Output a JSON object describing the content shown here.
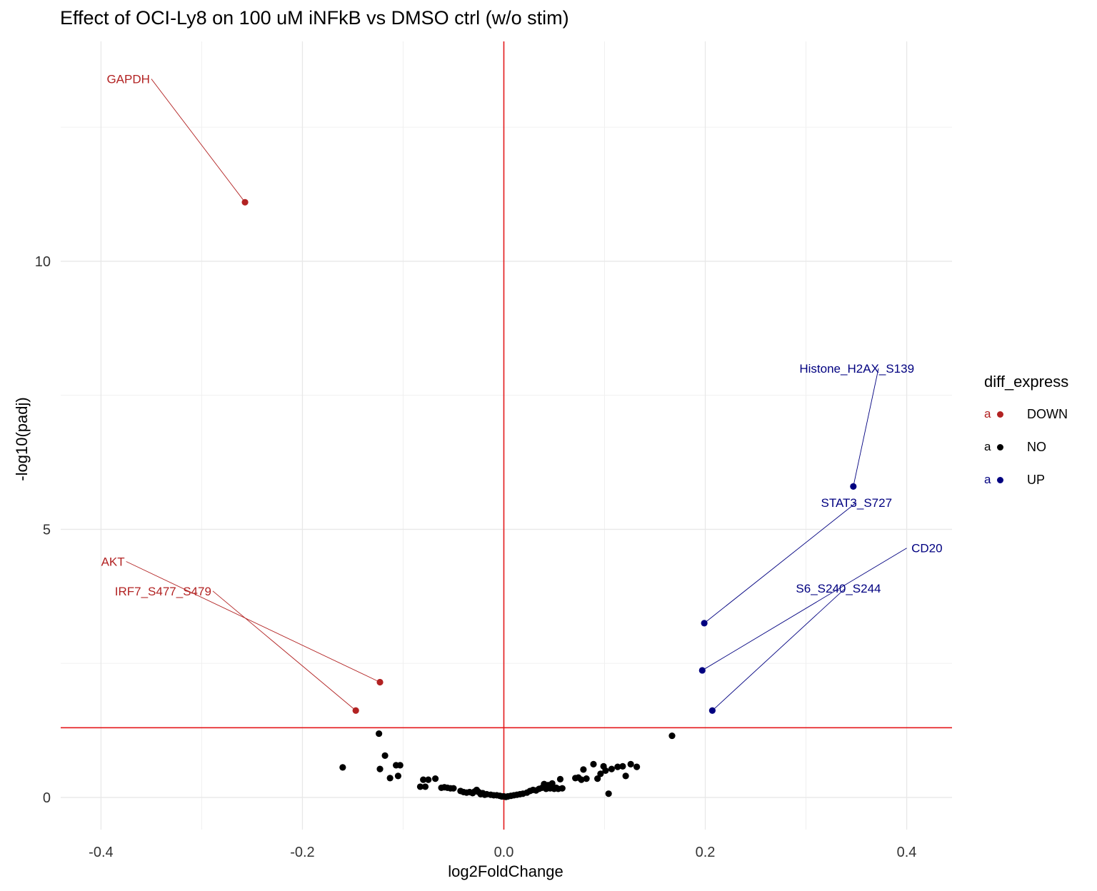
{
  "chart_data": {
    "type": "scatter",
    "title": "Effect of OCI-Ly8 on 100 uM iNFkB vs DMSO ctrl (w/o stim)",
    "xlabel": "log2FoldChange",
    "ylabel": "-log10(padj)",
    "xlim": [
      -0.44,
      0.445
    ],
    "ylim": [
      -0.6,
      14.1
    ],
    "xticks": [
      -0.4,
      -0.2,
      0.0,
      0.2,
      0.4
    ],
    "xtick_labels": [
      "-0.4",
      "-0.2",
      "0.0",
      "0.2",
      "0.4"
    ],
    "yticks": [
      0,
      5,
      10
    ],
    "ytick_labels": [
      "0",
      "5",
      "10"
    ],
    "grid": true,
    "vline_x": 0.0,
    "hline_y": 1.3,
    "reference_line_color": "#e41a1c",
    "legend": {
      "title": "diff_express",
      "placement": "right",
      "entries": [
        {
          "key": "a",
          "label": "DOWN",
          "color": "#b22222"
        },
        {
          "key": "a",
          "label": "NO",
          "color": "#000000"
        },
        {
          "key": "a",
          "label": "UP",
          "color": "#000080"
        }
      ]
    },
    "series": [
      {
        "name": "DOWN",
        "color": "#b22222",
        "points": [
          {
            "x": -0.257,
            "y": 11.1,
            "label": "GAPDH",
            "label_x": -0.35,
            "label_y": 13.4
          },
          {
            "x": -0.123,
            "y": 2.15,
            "label": "AKT",
            "label_x": -0.375,
            "label_y": 4.4
          },
          {
            "x": -0.147,
            "y": 1.62,
            "label": "IRF7_S477_S479",
            "label_x": -0.289,
            "label_y": 3.85
          }
        ]
      },
      {
        "name": "NO",
        "color": "#000000",
        "points": [
          {
            "x": -0.16,
            "y": 0.56
          },
          {
            "x": -0.124,
            "y": 1.19
          },
          {
            "x": -0.123,
            "y": 0.53
          },
          {
            "x": -0.118,
            "y": 0.78
          },
          {
            "x": -0.113,
            "y": 0.36
          },
          {
            "x": -0.107,
            "y": 0.6
          },
          {
            "x": -0.105,
            "y": 0.4
          },
          {
            "x": -0.103,
            "y": 0.6
          },
          {
            "x": -0.083,
            "y": 0.2
          },
          {
            "x": -0.08,
            "y": 0.33
          },
          {
            "x": -0.078,
            "y": 0.2
          },
          {
            "x": -0.075,
            "y": 0.33
          },
          {
            "x": -0.068,
            "y": 0.35
          },
          {
            "x": -0.062,
            "y": 0.18
          },
          {
            "x": -0.059,
            "y": 0.19
          },
          {
            "x": -0.056,
            "y": 0.18
          },
          {
            "x": -0.053,
            "y": 0.17
          },
          {
            "x": -0.05,
            "y": 0.17
          },
          {
            "x": -0.043,
            "y": 0.12
          },
          {
            "x": -0.04,
            "y": 0.1
          },
          {
            "x": -0.037,
            "y": 0.09
          },
          {
            "x": -0.034,
            "y": 0.1
          },
          {
            "x": -0.031,
            "y": 0.08
          },
          {
            "x": -0.029,
            "y": 0.11
          },
          {
            "x": -0.027,
            "y": 0.14
          },
          {
            "x": -0.025,
            "y": 0.1
          },
          {
            "x": -0.023,
            "y": 0.06
          },
          {
            "x": -0.021,
            "y": 0.08
          },
          {
            "x": -0.019,
            "y": 0.05
          },
          {
            "x": -0.017,
            "y": 0.06
          },
          {
            "x": -0.013,
            "y": 0.05
          },
          {
            "x": -0.01,
            "y": 0.04
          },
          {
            "x": -0.007,
            "y": 0.04
          },
          {
            "x": -0.004,
            "y": 0.03
          },
          {
            "x": -0.002,
            "y": 0.02
          },
          {
            "x": 0.0,
            "y": 0.02
          },
          {
            "x": 0.002,
            "y": 0.01
          },
          {
            "x": 0.004,
            "y": 0.02
          },
          {
            "x": 0.007,
            "y": 0.03
          },
          {
            "x": 0.01,
            "y": 0.04
          },
          {
            "x": 0.013,
            "y": 0.05
          },
          {
            "x": 0.016,
            "y": 0.06
          },
          {
            "x": 0.019,
            "y": 0.07
          },
          {
            "x": 0.023,
            "y": 0.09
          },
          {
            "x": 0.026,
            "y": 0.12
          },
          {
            "x": 0.029,
            "y": 0.14
          },
          {
            "x": 0.032,
            "y": 0.13
          },
          {
            "x": 0.035,
            "y": 0.16
          },
          {
            "x": 0.038,
            "y": 0.18
          },
          {
            "x": 0.04,
            "y": 0.25
          },
          {
            "x": 0.042,
            "y": 0.16
          },
          {
            "x": 0.044,
            "y": 0.23
          },
          {
            "x": 0.046,
            "y": 0.17
          },
          {
            "x": 0.048,
            "y": 0.26
          },
          {
            "x": 0.05,
            "y": 0.16
          },
          {
            "x": 0.052,
            "y": 0.18
          },
          {
            "x": 0.054,
            "y": 0.16
          },
          {
            "x": 0.056,
            "y": 0.34
          },
          {
            "x": 0.058,
            "y": 0.17
          },
          {
            "x": 0.071,
            "y": 0.36
          },
          {
            "x": 0.074,
            "y": 0.37
          },
          {
            "x": 0.077,
            "y": 0.33
          },
          {
            "x": 0.079,
            "y": 0.52
          },
          {
            "x": 0.082,
            "y": 0.35
          },
          {
            "x": 0.089,
            "y": 0.62
          },
          {
            "x": 0.093,
            "y": 0.35
          },
          {
            "x": 0.096,
            "y": 0.44
          },
          {
            "x": 0.099,
            "y": 0.58
          },
          {
            "x": 0.101,
            "y": 0.5
          },
          {
            "x": 0.104,
            "y": 0.07
          },
          {
            "x": 0.107,
            "y": 0.53
          },
          {
            "x": 0.113,
            "y": 0.57
          },
          {
            "x": 0.118,
            "y": 0.58
          },
          {
            "x": 0.121,
            "y": 0.4
          },
          {
            "x": 0.126,
            "y": 0.62
          },
          {
            "x": 0.132,
            "y": 0.57
          },
          {
            "x": 0.167,
            "y": 1.15
          }
        ]
      },
      {
        "name": "UP",
        "color": "#000080",
        "points": [
          {
            "x": 0.347,
            "y": 5.8,
            "label": "Histone_H2AX_S139",
            "label_x": 0.372,
            "label_y": 8.0
          },
          {
            "x": 0.199,
            "y": 3.25,
            "label": "STAT3_S727",
            "label_x": 0.35,
            "label_y": 5.5
          },
          {
            "x": 0.197,
            "y": 2.37,
            "label": "CD20",
            "label_x": 0.4,
            "label_y": 4.65
          },
          {
            "x": 0.207,
            "y": 1.62,
            "label": "S6_S240_S244",
            "label_x": 0.339,
            "label_y": 3.9
          }
        ]
      }
    ]
  }
}
